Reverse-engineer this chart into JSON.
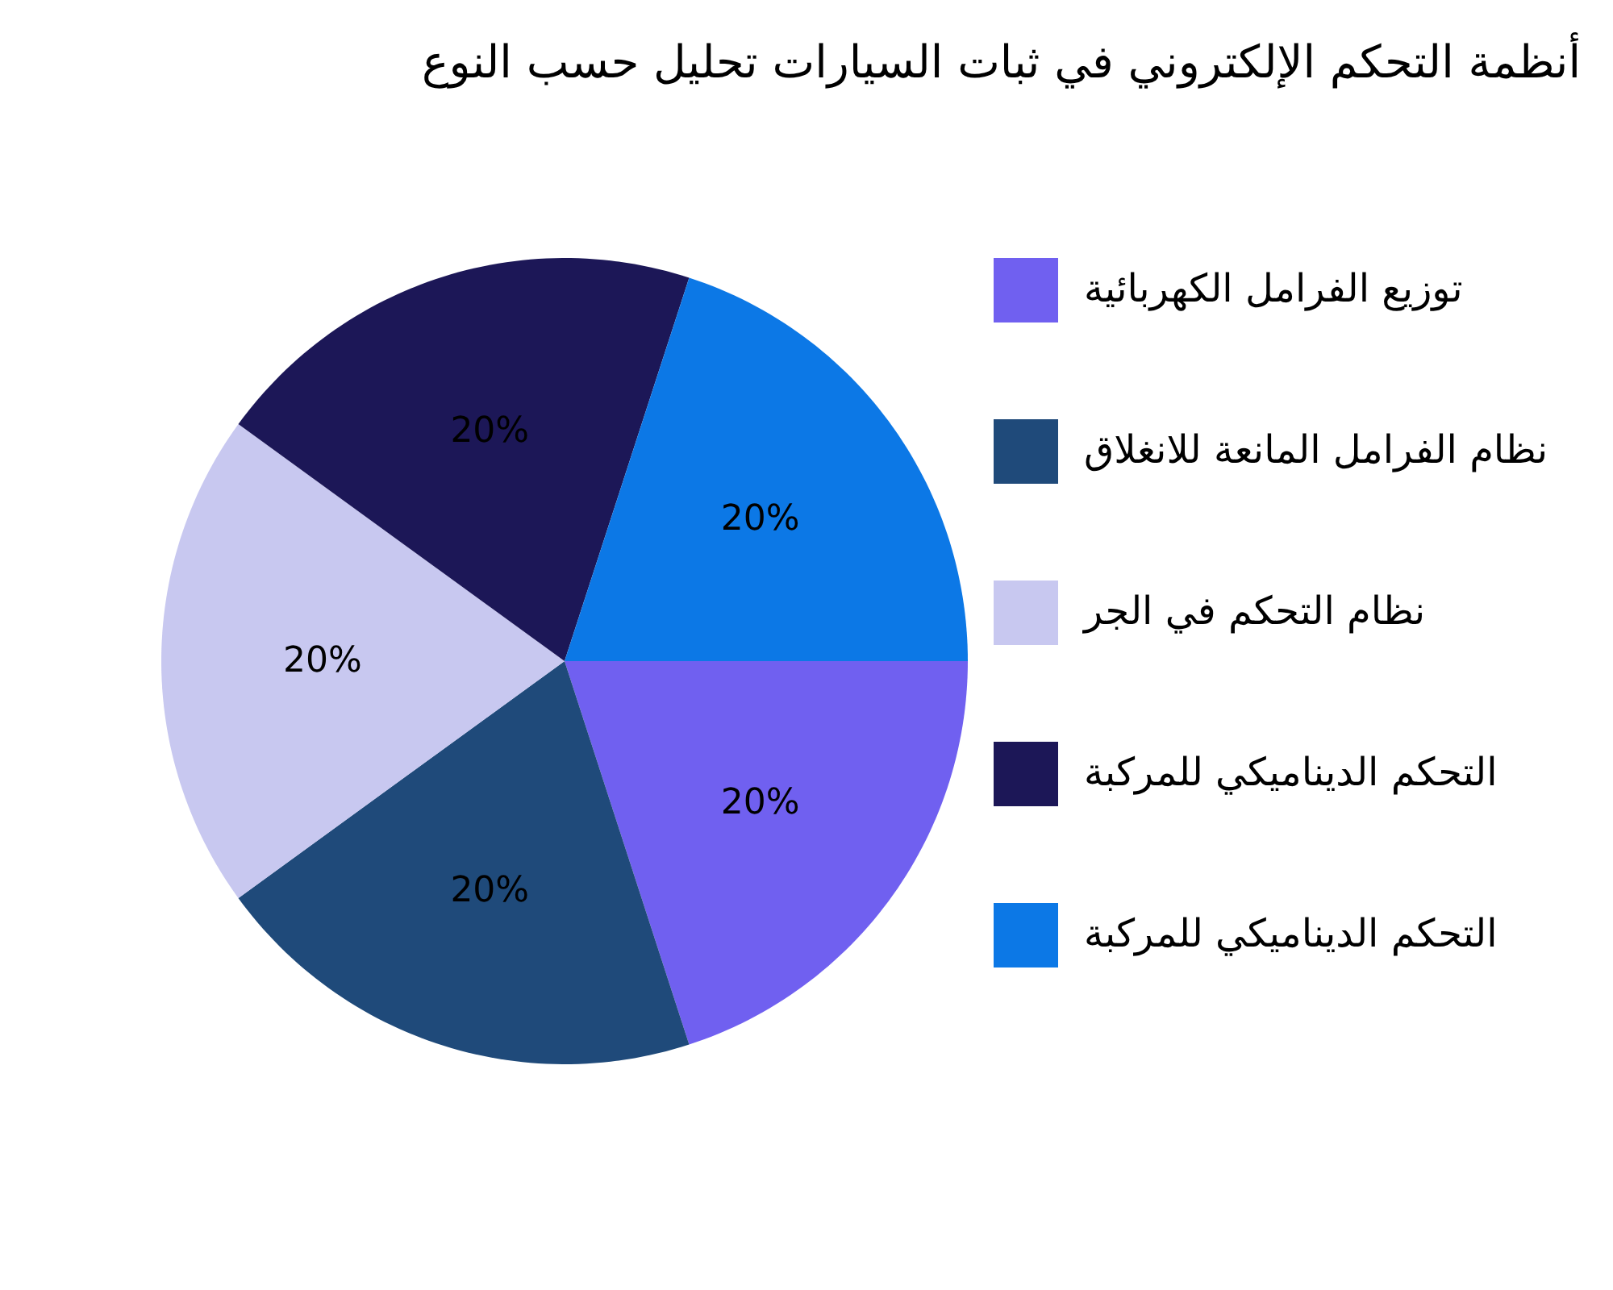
{
  "chart_data": {
    "type": "pie",
    "title": "أنظمة التحكم الإلكتروني في ثبات السيارات تحليل حسب النوع",
    "categories": [
      "توزيع الفرامل الكهربائية",
      "نظام الفرامل المانعة للانغلاق",
      "نظام التحكم في الجر",
      "التحكم الديناميكي للمركبة",
      "التحكم الديناميكي للمركبة"
    ],
    "values": [
      20,
      20,
      20,
      20,
      20
    ],
    "value_labels": [
      "20%",
      "20%",
      "20%",
      "20%",
      "20%"
    ],
    "colors": [
      "#7060f0",
      "#1f4a7a",
      "#c8c8f0",
      "#1c1757",
      "#0c78e6"
    ],
    "legend": "right"
  }
}
